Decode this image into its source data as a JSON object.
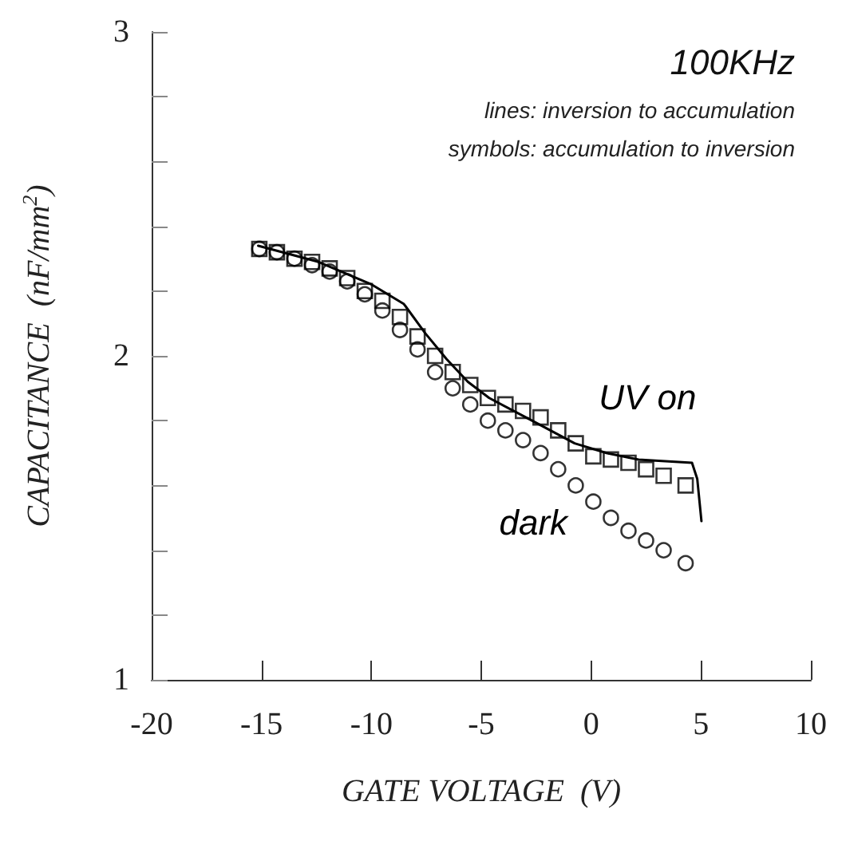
{
  "chart_data": {
    "type": "scatter",
    "title": "100KHz",
    "annotations": [
      "lines: inversion to accumulation",
      "symbols: accumulation to inversion"
    ],
    "xlabel": "GATE VOLTAGE  (V)",
    "ylabel": "CAPACITANCE  (nF/mm$^{2}$)",
    "xlim": [
      -20,
      10
    ],
    "xticks": [
      -20,
      -15,
      -10,
      -5,
      0,
      5,
      10
    ],
    "ylim": [
      1,
      3
    ],
    "yticks": [
      1,
      {
        "value": 1.2,
        "label": null
      },
      {
        "value": 1.4,
        "label": null
      },
      {
        "value": 1.6,
        "label": null
      },
      {
        "value": 1.8,
        "label": null
      },
      2,
      {
        "value": 2.2,
        "label": null
      },
      {
        "value": 2.4,
        "label": null
      },
      {
        "value": 2.6,
        "label": null
      },
      {
        "value": 2.8,
        "label": null
      },
      3
    ],
    "grid": false,
    "series": [
      {
        "name": "UV on",
        "type": "line",
        "marker": "none",
        "line_style": "solid",
        "color": "#000000",
        "x": [
          -15.15,
          -12.4,
          -9.98,
          -8.52,
          -7.55,
          -6.58,
          -5.61,
          -4.64,
          -2.69,
          -0.75,
          0.7,
          2.16,
          4.59,
          4.83,
          5.02
        ],
        "values": [
          2.34,
          2.29,
          2.22,
          2.16,
          2.07,
          1.99,
          1.92,
          1.87,
          1.8,
          1.73,
          1.7,
          1.68,
          1.67,
          1.62,
          1.49
        ]
      },
      {
        "name": "dark",
        "type": "scatter",
        "marker": "circle",
        "color": "#000000",
        "x": [
          -15.1,
          -14.3,
          -13.5,
          -12.7,
          -11.9,
          -11.1,
          -10.3,
          -9.5,
          -8.7,
          -7.9,
          -7.1,
          -6.3,
          -5.5,
          -4.7,
          -3.9,
          -3.1,
          -2.3,
          -1.5,
          -0.7,
          0.1,
          0.9,
          1.7,
          2.5,
          3.3,
          4.3
        ],
        "values": [
          2.33,
          2.32,
          2.3,
          2.28,
          2.26,
          2.23,
          2.19,
          2.14,
          2.08,
          2.02,
          1.95,
          1.9,
          1.85,
          1.8,
          1.77,
          1.74,
          1.7,
          1.65,
          1.6,
          1.55,
          1.5,
          1.46,
          1.43,
          1.4,
          1.36
        ]
      },
      {
        "type": "scatter",
        "marker": "square",
        "color": "#000000",
        "x": [
          -15.1,
          -14.3,
          -13.5,
          -12.7,
          -11.9,
          -11.1,
          -10.3,
          -9.5,
          -8.7,
          -7.9,
          -7.1,
          -6.3,
          -5.5,
          -4.7,
          -3.9,
          -3.1,
          -2.3,
          -1.5,
          -0.7,
          0.1,
          0.9,
          1.7,
          2.5,
          3.3,
          4.3
        ],
        "values": [
          2.33,
          2.32,
          2.3,
          2.29,
          2.27,
          2.24,
          2.2,
          2.17,
          2.12,
          2.06,
          2.0,
          1.95,
          1.91,
          1.87,
          1.85,
          1.83,
          1.81,
          1.77,
          1.73,
          1.69,
          1.68,
          1.67,
          1.65,
          1.63,
          1.6
        ]
      }
    ]
  }
}
